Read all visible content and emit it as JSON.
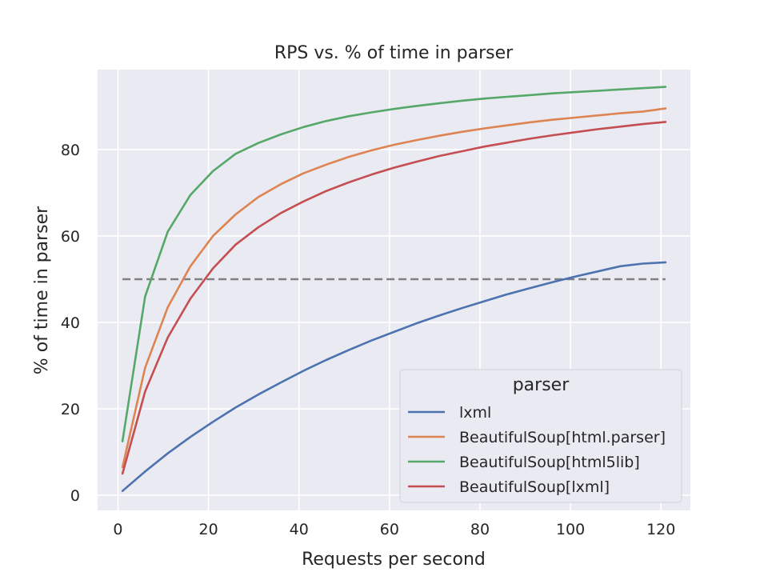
{
  "chart_data": {
    "type": "line",
    "title": "RPS vs. % of time in parser",
    "xlabel": "Requests per second",
    "ylabel": "% of time in parser",
    "xlim": [
      -4.5,
      126.5
    ],
    "ylim": [
      -3.5,
      98.5
    ],
    "xticks": [
      0,
      20,
      40,
      60,
      80,
      100,
      120
    ],
    "yticks": [
      0,
      20,
      40,
      60,
      80
    ],
    "grid": true,
    "legend": {
      "title": "parser",
      "position": "lower-right"
    },
    "reference_line": {
      "y": 50,
      "x_range": [
        1,
        121
      ],
      "style": "dashed",
      "color": "#808080"
    },
    "x": [
      1,
      6,
      11,
      16,
      21,
      26,
      31,
      36,
      41,
      46,
      51,
      56,
      61,
      66,
      71,
      76,
      81,
      86,
      91,
      96,
      101,
      106,
      111,
      116,
      121
    ],
    "series": [
      {
        "name": "lxml",
        "color": "#4c72b0",
        "values": [
          1.0,
          5.5,
          9.7,
          13.5,
          17.0,
          20.3,
          23.3,
          26.1,
          28.8,
          31.3,
          33.6,
          35.8,
          37.8,
          39.8,
          41.6,
          43.3,
          44.9,
          46.5,
          47.9,
          49.3,
          50.6,
          51.8,
          53.0,
          53.6,
          53.9
        ]
      },
      {
        "name": "BeautifulSoup[html.parser]",
        "color": "#dd8452",
        "values": [
          6.5,
          29.5,
          43.5,
          53.0,
          60.0,
          65.0,
          69.0,
          72.0,
          74.5,
          76.5,
          78.3,
          79.8,
          81.1,
          82.2,
          83.2,
          84.1,
          84.9,
          85.6,
          86.3,
          86.9,
          87.4,
          87.9,
          88.4,
          88.8,
          89.5
        ]
      },
      {
        "name": "BeautifulSoup[html5lib]",
        "color": "#55a868",
        "values": [
          12.5,
          46.0,
          61.0,
          69.5,
          75.0,
          79.0,
          81.5,
          83.5,
          85.2,
          86.6,
          87.7,
          88.6,
          89.4,
          90.1,
          90.7,
          91.3,
          91.8,
          92.2,
          92.6,
          93.0,
          93.3,
          93.6,
          93.9,
          94.2,
          94.5
        ]
      },
      {
        "name": "BeautifulSoup[lxml]",
        "color": "#c44e52",
        "values": [
          5.0,
          24.0,
          36.5,
          45.5,
          52.5,
          58.0,
          62.0,
          65.3,
          68.0,
          70.4,
          72.4,
          74.2,
          75.8,
          77.2,
          78.5,
          79.6,
          80.7,
          81.6,
          82.5,
          83.3,
          84.0,
          84.7,
          85.3,
          85.9,
          86.4
        ]
      }
    ]
  }
}
